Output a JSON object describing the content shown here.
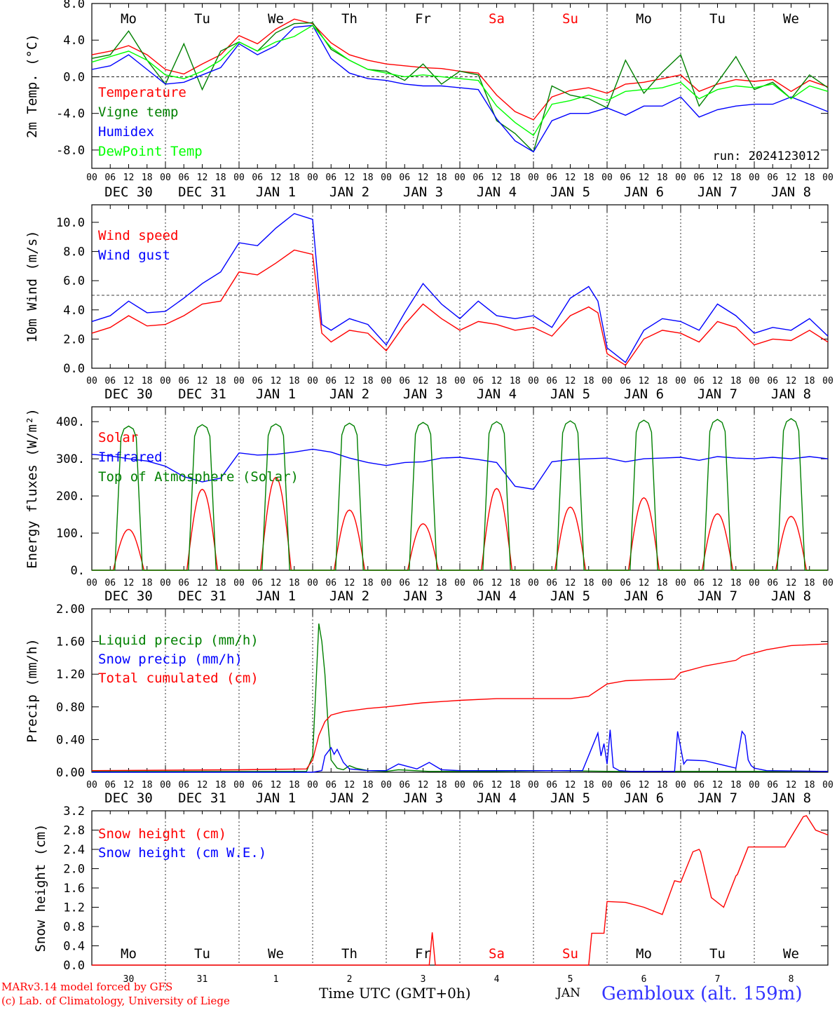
{
  "colors": {
    "red": "#ff0000",
    "green": "#008000",
    "blue": "#0000ff",
    "lightgreen": "#00ff00",
    "text": "#000000",
    "weekend": "#ff0000",
    "station": "#3333ff"
  },
  "days": [
    "Mo",
    "Tu",
    "We",
    "Th",
    "Fr",
    "Sa",
    "Su",
    "Mo",
    "Tu",
    "We"
  ],
  "weekend_days": [
    "Sa",
    "Su"
  ],
  "date_labels": [
    "DEC 30",
    "DEC 31",
    "JAN  1",
    "JAN  2",
    "JAN  3",
    "JAN  4",
    "JAN  5",
    "JAN  6",
    "JAN  7",
    "JAN  8"
  ],
  "hour_ticks": [
    "00",
    "06",
    "12",
    "18"
  ],
  "snow_day_numbers": [
    "30",
    "31",
    "1",
    "2",
    "3",
    "4",
    "5",
    "6",
    "7",
    "8"
  ],
  "footer": {
    "model": "MARv3.14 model forced by GFS",
    "lab": "(c) Lab. of Climatology, University of Liege",
    "time_label": "Time UTC (GMT+0h)",
    "month_label": "JAN",
    "station": "Gembloux (alt. 159m)"
  },
  "chart_data": [
    {
      "type": "line",
      "ylabel": "2m Temp. (°C)",
      "ylim": [
        -10,
        8
      ],
      "yticks": [
        "8.0",
        "4.0",
        "0.0",
        "-4.0",
        "-8.0"
      ],
      "ytick_values": [
        8,
        4,
        0,
        -4,
        -8
      ],
      "ref_line": 0,
      "annotation": "run: 2024123012",
      "x_unit": "hours since DEC 30 00 UTC",
      "series": [
        {
          "name": "Temperature",
          "color": "red",
          "x": [
            0,
            6,
            12,
            18,
            24,
            30,
            36,
            42,
            48,
            54,
            60,
            66,
            72,
            78,
            84,
            90,
            96,
            102,
            108,
            114,
            120,
            126,
            132,
            138,
            144,
            150,
            156,
            162,
            168,
            174,
            180,
            186,
            192,
            198,
            204,
            210,
            216,
            222,
            228,
            234,
            240
          ],
          "values": [
            2.4,
            2.8,
            3.4,
            2.4,
            0.8,
            0.3,
            1.4,
            2.4,
            4.5,
            3.6,
            5.2,
            6.3,
            5.8,
            3.7,
            2.4,
            1.8,
            1.4,
            1.2,
            1.0,
            0.9,
            0.6,
            0.4,
            -2.0,
            -3.8,
            -4.7,
            -2.2,
            -1.5,
            -1.2,
            -1.8,
            -0.8,
            -0.6,
            -0.2,
            0.2,
            -1.6,
            -0.8,
            -0.3,
            -0.5,
            -0.3,
            -1.6,
            -0.4,
            -1.1
          ]
        },
        {
          "name": "Vigne temp",
          "color": "green",
          "x": [
            0,
            6,
            12,
            18,
            24,
            30,
            36,
            42,
            48,
            54,
            60,
            66,
            72,
            78,
            84,
            90,
            96,
            102,
            108,
            114,
            120,
            126,
            132,
            138,
            144,
            150,
            156,
            162,
            168,
            174,
            180,
            186,
            192,
            198,
            204,
            210,
            216,
            222,
            228,
            234,
            240
          ],
          "values": [
            2.0,
            2.4,
            5.0,
            1.8,
            -0.8,
            3.6,
            -1.4,
            2.8,
            3.8,
            2.8,
            4.8,
            5.8,
            5.9,
            3.0,
            1.8,
            0.8,
            0.6,
            -0.4,
            1.4,
            -0.8,
            0.6,
            0.2,
            -4.8,
            -6.2,
            -8.2,
            -1.0,
            -2.0,
            -2.4,
            -3.4,
            1.8,
            -1.8,
            0.5,
            2.4,
            -3.2,
            -0.6,
            2.2,
            -1.4,
            -0.6,
            -2.4,
            0.2,
            -1.2
          ]
        },
        {
          "name": "Humidex",
          "color": "blue",
          "x": [
            0,
            6,
            12,
            18,
            24,
            30,
            36,
            42,
            48,
            54,
            60,
            66,
            72,
            78,
            84,
            90,
            96,
            102,
            108,
            114,
            120,
            126,
            132,
            138,
            144,
            150,
            156,
            162,
            168,
            174,
            180,
            186,
            192,
            198,
            204,
            210,
            216,
            222,
            228,
            234,
            240
          ],
          "values": [
            0.8,
            1.2,
            2.4,
            0.8,
            -0.8,
            -0.6,
            0.2,
            1.0,
            3.6,
            2.4,
            3.4,
            5.4,
            5.6,
            2.0,
            0.4,
            -0.2,
            -0.4,
            -0.8,
            -1.0,
            -1.0,
            -1.2,
            -1.4,
            -4.6,
            -7.0,
            -8.2,
            -4.8,
            -4.0,
            -4.0,
            -3.4,
            -4.2,
            -3.2,
            -3.2,
            -2.2,
            -4.4,
            -3.6,
            -3.2,
            -3.0,
            -3.0,
            -2.2,
            -3.0,
            -3.8
          ]
        },
        {
          "name": "DewPoint Temp",
          "color": "lightgreen",
          "x": [
            0,
            6,
            12,
            18,
            24,
            30,
            36,
            42,
            48,
            54,
            60,
            66,
            72,
            78,
            84,
            90,
            96,
            102,
            108,
            114,
            120,
            126,
            132,
            138,
            144,
            150,
            156,
            162,
            168,
            174,
            180,
            186,
            192,
            198,
            204,
            210,
            216,
            222,
            228,
            234,
            240
          ],
          "values": [
            1.6,
            2.2,
            2.8,
            1.8,
            0.2,
            -0.2,
            0.6,
            1.8,
            3.8,
            2.8,
            3.8,
            4.4,
            5.6,
            3.2,
            1.8,
            0.8,
            0.4,
            0.0,
            0.2,
            0.0,
            -0.2,
            -0.4,
            -3.2,
            -5.0,
            -6.4,
            -3.0,
            -2.6,
            -2.0,
            -2.6,
            -1.6,
            -1.4,
            -1.2,
            -0.6,
            -2.4,
            -1.4,
            -1.0,
            -1.2,
            -0.8,
            -2.4,
            -1.0,
            -1.6
          ]
        }
      ]
    },
    {
      "type": "line",
      "ylabel": "10m Wind (m/s)",
      "ylim": [
        0,
        11.2
      ],
      "yticks": [
        "10.0",
        "8.0",
        "6.0",
        "4.0",
        "2.0",
        "0.0"
      ],
      "ytick_values": [
        10,
        8,
        6,
        4,
        2,
        0
      ],
      "ref_line": 5,
      "x_unit": "hours since DEC 30 00 UTC",
      "series": [
        {
          "name": "Wind speed",
          "color": "red",
          "x": [
            0,
            6,
            12,
            18,
            24,
            30,
            36,
            42,
            48,
            54,
            60,
            66,
            72,
            75,
            78,
            84,
            90,
            96,
            102,
            108,
            114,
            120,
            126,
            132,
            138,
            144,
            150,
            156,
            162,
            165,
            168,
            174,
            180,
            186,
            192,
            198,
            204,
            210,
            216,
            222,
            228,
            234,
            240
          ],
          "values": [
            2.4,
            2.8,
            3.6,
            2.9,
            3.0,
            3.6,
            4.4,
            4.6,
            6.6,
            6.4,
            7.2,
            8.1,
            7.8,
            2.4,
            1.8,
            2.6,
            2.4,
            1.2,
            3.0,
            4.4,
            3.4,
            2.6,
            3.2,
            3.0,
            2.6,
            2.8,
            2.2,
            3.6,
            4.2,
            3.8,
            1.0,
            0.2,
            2.0,
            2.6,
            2.4,
            1.8,
            3.2,
            2.8,
            1.6,
            2.0,
            1.9,
            2.6,
            1.8
          ]
        },
        {
          "name": "Wind gust",
          "color": "blue",
          "x": [
            0,
            6,
            12,
            18,
            24,
            30,
            36,
            42,
            48,
            54,
            60,
            66,
            72,
            75,
            78,
            84,
            90,
            96,
            102,
            108,
            114,
            120,
            126,
            132,
            138,
            144,
            150,
            156,
            162,
            165,
            168,
            174,
            180,
            186,
            192,
            198,
            204,
            210,
            216,
            222,
            228,
            234,
            240
          ],
          "values": [
            3.2,
            3.6,
            4.6,
            3.8,
            3.9,
            4.8,
            5.8,
            6.6,
            8.6,
            8.4,
            9.6,
            10.6,
            10.2,
            3.0,
            2.6,
            3.4,
            3.0,
            1.6,
            3.8,
            5.8,
            4.4,
            3.4,
            4.6,
            3.6,
            3.4,
            3.6,
            2.8,
            4.8,
            5.6,
            4.6,
            1.4,
            0.4,
            2.6,
            3.4,
            3.2,
            2.6,
            4.4,
            3.6,
            2.4,
            2.8,
            2.6,
            3.4,
            2.2
          ]
        }
      ]
    },
    {
      "type": "line",
      "ylabel": "Energy fluxes (W/m²)",
      "ylim": [
        0,
        440
      ],
      "yticks": [
        "400.",
        "300.",
        "200.",
        "100.",
        "0."
      ],
      "ytick_values": [
        400,
        300,
        200,
        100,
        0
      ],
      "x_unit": "hours since DEC 30 00 UTC",
      "daily_peaks": {
        "Top of Atmosphere (Solar)": [
          388,
          392,
          394,
          396,
          398,
          400,
          402,
          404,
          406,
          408
        ],
        "Solar": [
          110,
          218,
          250,
          162,
          125,
          220,
          170,
          195,
          152,
          145
        ]
      },
      "series": [
        {
          "name": "Solar",
          "color": "red"
        },
        {
          "name": "Infrared",
          "color": "blue",
          "x": [
            0,
            6,
            12,
            18,
            24,
            30,
            36,
            42,
            48,
            54,
            60,
            66,
            72,
            78,
            84,
            90,
            96,
            102,
            108,
            114,
            120,
            126,
            132,
            138,
            144,
            150,
            156,
            162,
            168,
            174,
            180,
            186,
            192,
            198,
            204,
            210,
            216,
            222,
            228,
            234,
            240
          ],
          "values": [
            312,
            308,
            300,
            294,
            280,
            252,
            238,
            248,
            316,
            310,
            312,
            318,
            326,
            318,
            302,
            290,
            282,
            290,
            292,
            302,
            304,
            298,
            290,
            226,
            218,
            292,
            298,
            300,
            302,
            292,
            300,
            302,
            304,
            296,
            306,
            302,
            300,
            304,
            300,
            306,
            300
          ]
        },
        {
          "name": "Top of Atmosphere (Solar)",
          "color": "green"
        }
      ]
    },
    {
      "type": "line",
      "ylabel": "Precip (mm/h)",
      "ylim": [
        0,
        2.0
      ],
      "yticks": [
        "2.00",
        "1.60",
        "1.20",
        "0.80",
        "0.40",
        "0.00"
      ],
      "ytick_values": [
        2.0,
        1.6,
        1.2,
        0.8,
        0.4,
        0.0
      ],
      "x_unit": "hours since DEC 30 00 UTC",
      "series": [
        {
          "name": "Liquid precip (mm/h)",
          "color": "green",
          "x": [
            0,
            24,
            48,
            70,
            72,
            73,
            74,
            75,
            76,
            77,
            78,
            80,
            82,
            84,
            86,
            90,
            96,
            100,
            110,
            130,
            150,
            170,
            190,
            200,
            220,
            240
          ],
          "values": [
            0.01,
            0.01,
            0.01,
            0.01,
            0.2,
            1.0,
            1.82,
            1.6,
            1.2,
            0.6,
            0.15,
            0.05,
            0.03,
            0.08,
            0.05,
            0.02,
            0.01,
            0.03,
            0.01,
            0.01,
            0.02,
            0.01,
            0.01,
            0.01,
            0.01,
            0.01
          ]
        },
        {
          "name": "Snow precip (mm/h)",
          "color": "blue",
          "x": [
            0,
            72,
            75,
            76,
            78,
            79,
            80,
            82,
            84,
            90,
            96,
            100,
            106,
            110,
            114,
            120,
            140,
            160,
            165,
            166,
            167,
            168,
            169,
            170,
            172,
            176,
            180,
            190,
            191,
            192,
            193,
            194,
            200,
            210,
            212,
            213,
            214,
            215,
            216,
            220,
            240
          ],
          "values": [
            0.0,
            0.0,
            0.02,
            0.2,
            0.3,
            0.22,
            0.28,
            0.12,
            0.04,
            0.02,
            0.02,
            0.1,
            0.04,
            0.12,
            0.03,
            0.02,
            0.02,
            0.02,
            0.48,
            0.2,
            0.35,
            0.1,
            0.52,
            0.06,
            0.02,
            0.01,
            0.01,
            0.01,
            0.5,
            0.3,
            0.1,
            0.15,
            0.14,
            0.05,
            0.5,
            0.45,
            0.15,
            0.08,
            0.05,
            0.02,
            0.01
          ]
        },
        {
          "name": "Total cumulated (cm)",
          "color": "red",
          "x": [
            0,
            48,
            70,
            72,
            74,
            76,
            78,
            82,
            90,
            96,
            108,
            120,
            132,
            144,
            156,
            162,
            168,
            174,
            180,
            190,
            192,
            200,
            210,
            212,
            220,
            228,
            240
          ],
          "values": [
            0.02,
            0.03,
            0.04,
            0.15,
            0.45,
            0.62,
            0.7,
            0.74,
            0.78,
            0.8,
            0.85,
            0.88,
            0.9,
            0.9,
            0.9,
            0.93,
            1.08,
            1.12,
            1.13,
            1.14,
            1.22,
            1.3,
            1.37,
            1.42,
            1.5,
            1.55,
            1.57
          ]
        }
      ]
    },
    {
      "type": "line",
      "ylabel": "Snow height (cm)",
      "ylim": [
        0,
        3.2
      ],
      "yticks": [
        "3.2",
        "2.8",
        "2.4",
        "2.0",
        "1.6",
        "1.2",
        "0.8",
        "0.4",
        "0.0"
      ],
      "ytick_values": [
        3.2,
        2.8,
        2.4,
        2.0,
        1.6,
        1.2,
        0.8,
        0.4,
        0.0
      ],
      "x_unit": "hours since DEC 30 00 UTC",
      "series": [
        {
          "name": "Snow height (cm)",
          "color": "red",
          "x": [
            0,
            110,
            111,
            112,
            162,
            163,
            167,
            168,
            174,
            180,
            186,
            190,
            192,
            196,
            198,
            198.5,
            202,
            206,
            210,
            210.5,
            214,
            220,
            226,
            232,
            233,
            236,
            240
          ],
          "values": [
            0,
            0,
            0.68,
            0,
            0,
            0.66,
            0.66,
            1.32,
            1.3,
            1.2,
            1.05,
            1.75,
            1.72,
            2.35,
            2.4,
            2.35,
            1.4,
            1.2,
            1.85,
            1.88,
            2.45,
            2.45,
            2.45,
            3.08,
            3.1,
            2.8,
            2.7
          ]
        },
        {
          "name": "Snow height (cm W.E.)",
          "color": "blue"
        }
      ]
    }
  ]
}
